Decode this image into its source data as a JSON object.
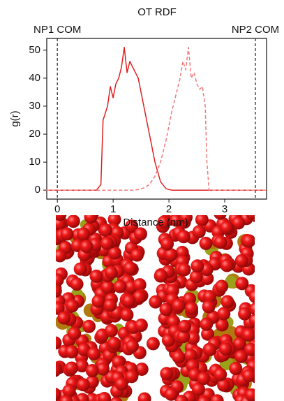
{
  "chart_data": {
    "type": "line",
    "title": "OT RDF",
    "x_label": "Distance (nm)",
    "y_label": "g(r)",
    "x": [
      -0.2,
      0.7,
      0.78,
      0.82,
      0.9,
      0.95,
      1.0,
      1.05,
      1.1,
      1.15,
      1.2,
      1.25,
      1.3,
      1.35,
      1.45,
      1.55,
      1.65,
      1.75,
      1.85,
      1.95,
      2.05,
      2.1,
      2.2,
      2.25,
      2.3,
      2.35,
      2.4,
      2.45,
      2.5,
      2.55,
      2.6,
      2.65,
      2.68,
      2.72,
      3.75
    ],
    "series": [
      {
        "color": "#e0201f",
        "dash": false,
        "values": [
          0,
          0,
          2,
          25,
          30,
          37,
          33,
          38,
          40,
          44,
          51,
          42,
          46,
          44,
          40,
          30,
          20,
          10,
          3,
          0.5,
          0,
          0,
          0,
          0,
          0,
          0,
          0,
          0,
          0,
          0,
          0,
          0,
          0,
          0,
          0
        ]
      },
      {
        "color": "#f07a7a",
        "dash": true,
        "values": [
          0,
          0,
          0,
          0,
          0,
          0,
          0,
          0,
          0,
          0,
          0,
          0,
          0,
          0,
          0.2,
          0.8,
          2,
          5,
          10,
          18,
          28,
          32,
          40,
          46,
          43,
          51,
          40,
          42,
          38,
          36,
          37,
          30,
          10,
          0,
          0
        ]
      }
    ],
    "markers": [
      {
        "x": 0,
        "label": "NP1 COM"
      },
      {
        "x": 3.55,
        "label": "NP2 COM"
      }
    ],
    "xlim": [
      -0.19,
      3.75
    ],
    "ylim": [
      -3.2,
      54.2
    ],
    "xticks": [
      0,
      1,
      2,
      3
    ],
    "yticks": [
      0,
      10,
      20,
      30,
      40,
      50
    ]
  }
}
